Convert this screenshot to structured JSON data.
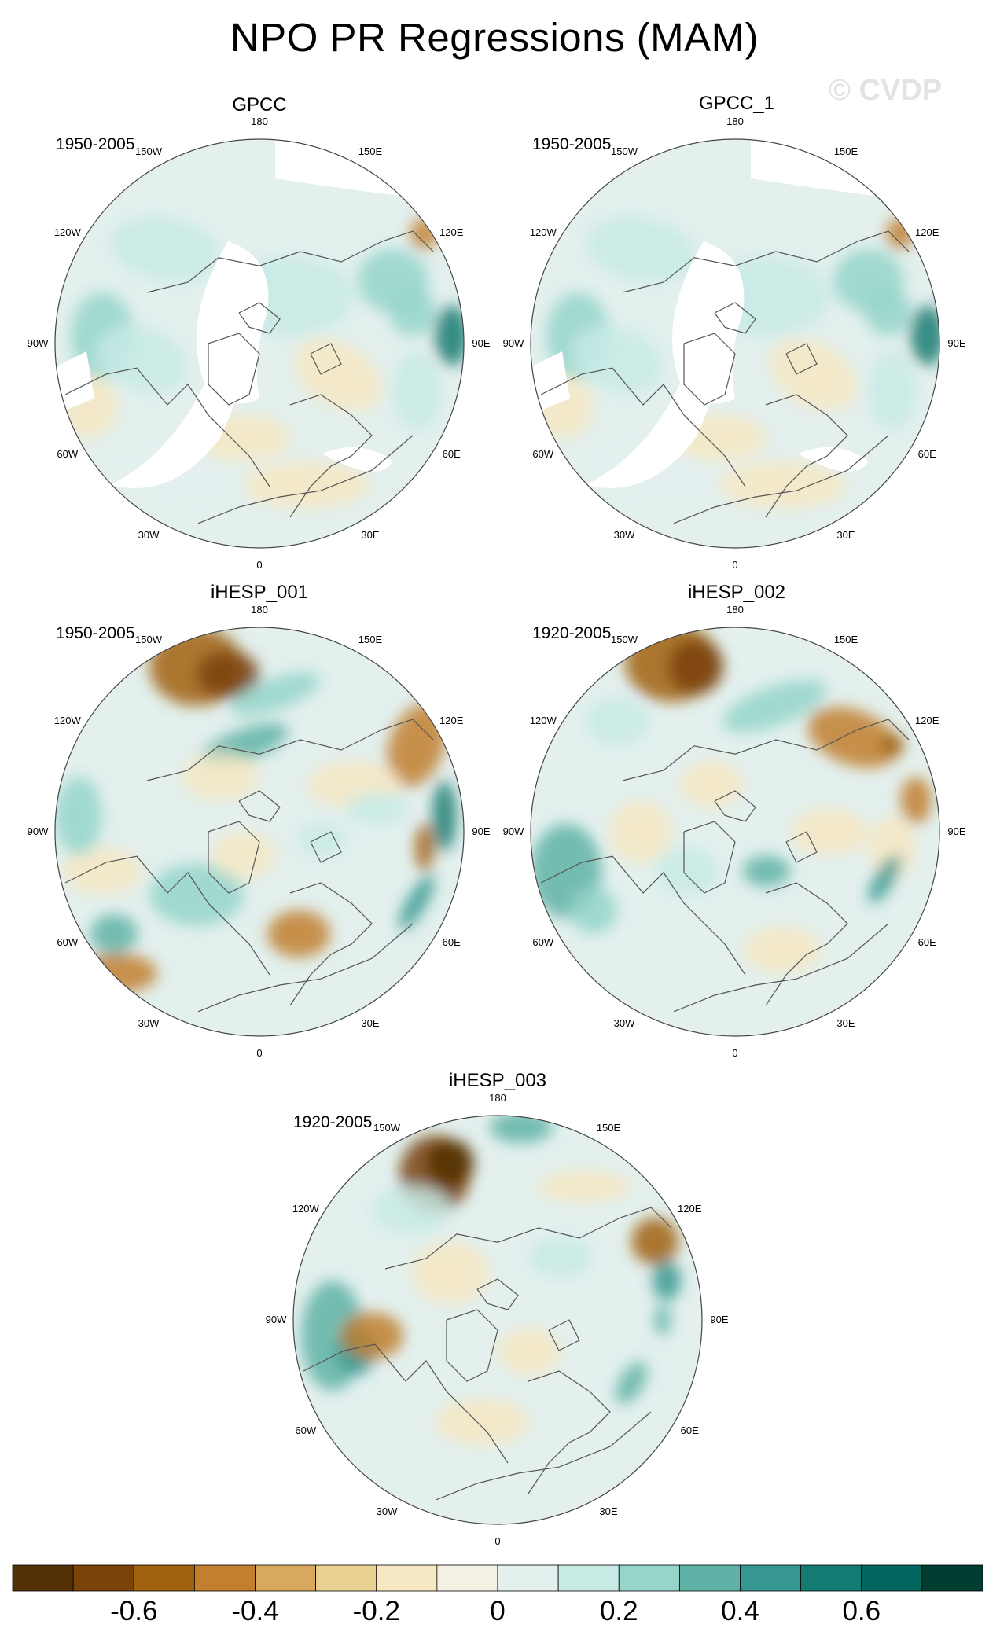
{
  "figure": {
    "title": "NPO PR Regressions (MAM)",
    "watermark": "© CVDP"
  },
  "panels": [
    {
      "name": "GPCC",
      "period": "1950-2005"
    },
    {
      "name": "GPCC_1",
      "period": "1950-2005"
    },
    {
      "name": "iHESP_001",
      "period": "1950-2005"
    },
    {
      "name": "iHESP_002",
      "period": "1920-2005"
    },
    {
      "name": "iHESP_003",
      "period": "1920-2005"
    }
  ],
  "longitude_labels": [
    "180",
    "150E",
    "120E",
    "90E",
    "60E",
    "30E",
    "0",
    "30W",
    "60W",
    "90W",
    "120W",
    "150W"
  ],
  "colorbar": {
    "colors": [
      "#543005",
      "#7a4309",
      "#a1610f",
      "#c17f2f",
      "#d6a95e",
      "#e8cf92",
      "#f6e8c3",
      "#f5f1e4",
      "#e3f0ee",
      "#c7eae5",
      "#95d5ca",
      "#5fb3a6",
      "#35978f",
      "#147b72",
      "#01665e",
      "#003c30"
    ],
    "tick_labels": [
      "-0.6",
      "-0.4",
      "-0.2",
      "0",
      "0.2",
      "0.4",
      "0.6"
    ]
  },
  "colors": {
    "land_outline": "#555555",
    "circle_outline": "#444444",
    "watermark": "#e3e3e3"
  }
}
